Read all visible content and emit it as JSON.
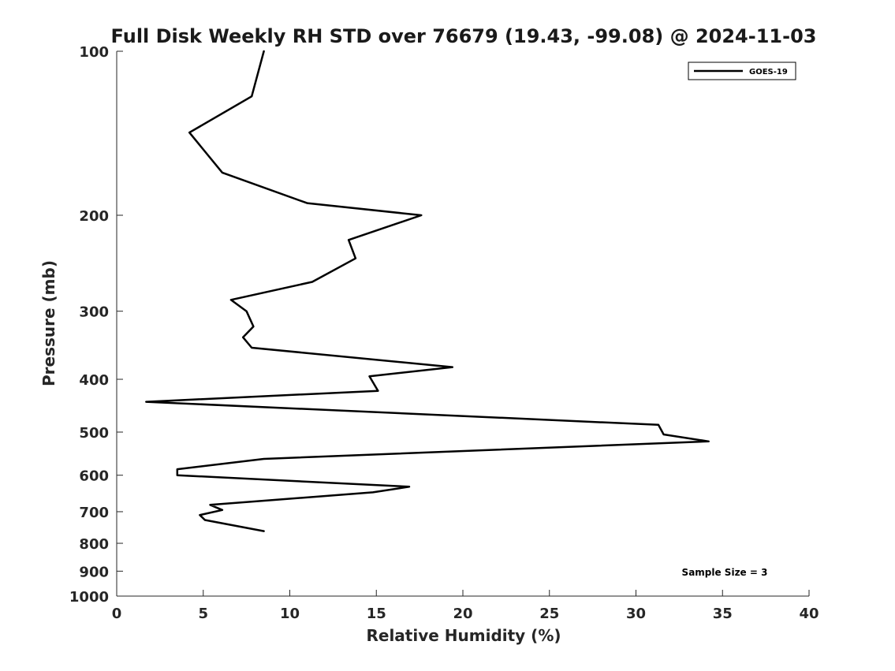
{
  "chart_data": {
    "type": "line",
    "title": "Full Disk Weekly RH STD over 76679 (19.43, -99.08) @ 2024-11-03",
    "xlabel": "Relative Humidity (%)",
    "ylabel": "Pressure (mb)",
    "xlim": [
      0,
      40
    ],
    "ylim": [
      100,
      1000
    ],
    "yscale": "log",
    "y_reversed": true,
    "x_ticks": [
      0,
      5,
      10,
      15,
      20,
      25,
      30,
      35,
      40
    ],
    "x_tick_labels": [
      "0",
      "5",
      "10",
      "15",
      "20",
      "25",
      "30",
      "35",
      "40"
    ],
    "y_ticks": [
      100,
      200,
      300,
      400,
      500,
      600,
      700,
      800,
      900,
      1000
    ],
    "y_tick_labels": [
      "100",
      "200",
      "300",
      "400",
      "500",
      "600",
      "700",
      "800",
      "900",
      "1000"
    ],
    "grid": false,
    "legend_position": "top-right",
    "annotation": "Sample Size = 3",
    "series": [
      {
        "name": "GOES-19",
        "color": "#000000",
        "x": [
          8.5,
          7.8,
          4.2,
          6.1,
          11.0,
          17.6,
          13.4,
          13.8,
          11.3,
          6.6,
          7.5,
          7.9,
          7.3,
          7.8,
          19.4,
          14.6,
          15.1,
          1.7,
          31.3,
          31.6,
          34.2,
          8.5,
          3.5,
          3.5,
          16.9,
          14.8,
          5.4,
          6.1,
          4.8,
          5.1,
          8.5
        ],
        "y": [
          100,
          121,
          141,
          167,
          190,
          200,
          222,
          240,
          265,
          286,
          300,
          320,
          335,
          350,
          380,
          395,
          420,
          440,
          485,
          505,
          520,
          560,
          585,
          600,
          630,
          645,
          680,
          695,
          710,
          725,
          760
        ]
      }
    ]
  }
}
